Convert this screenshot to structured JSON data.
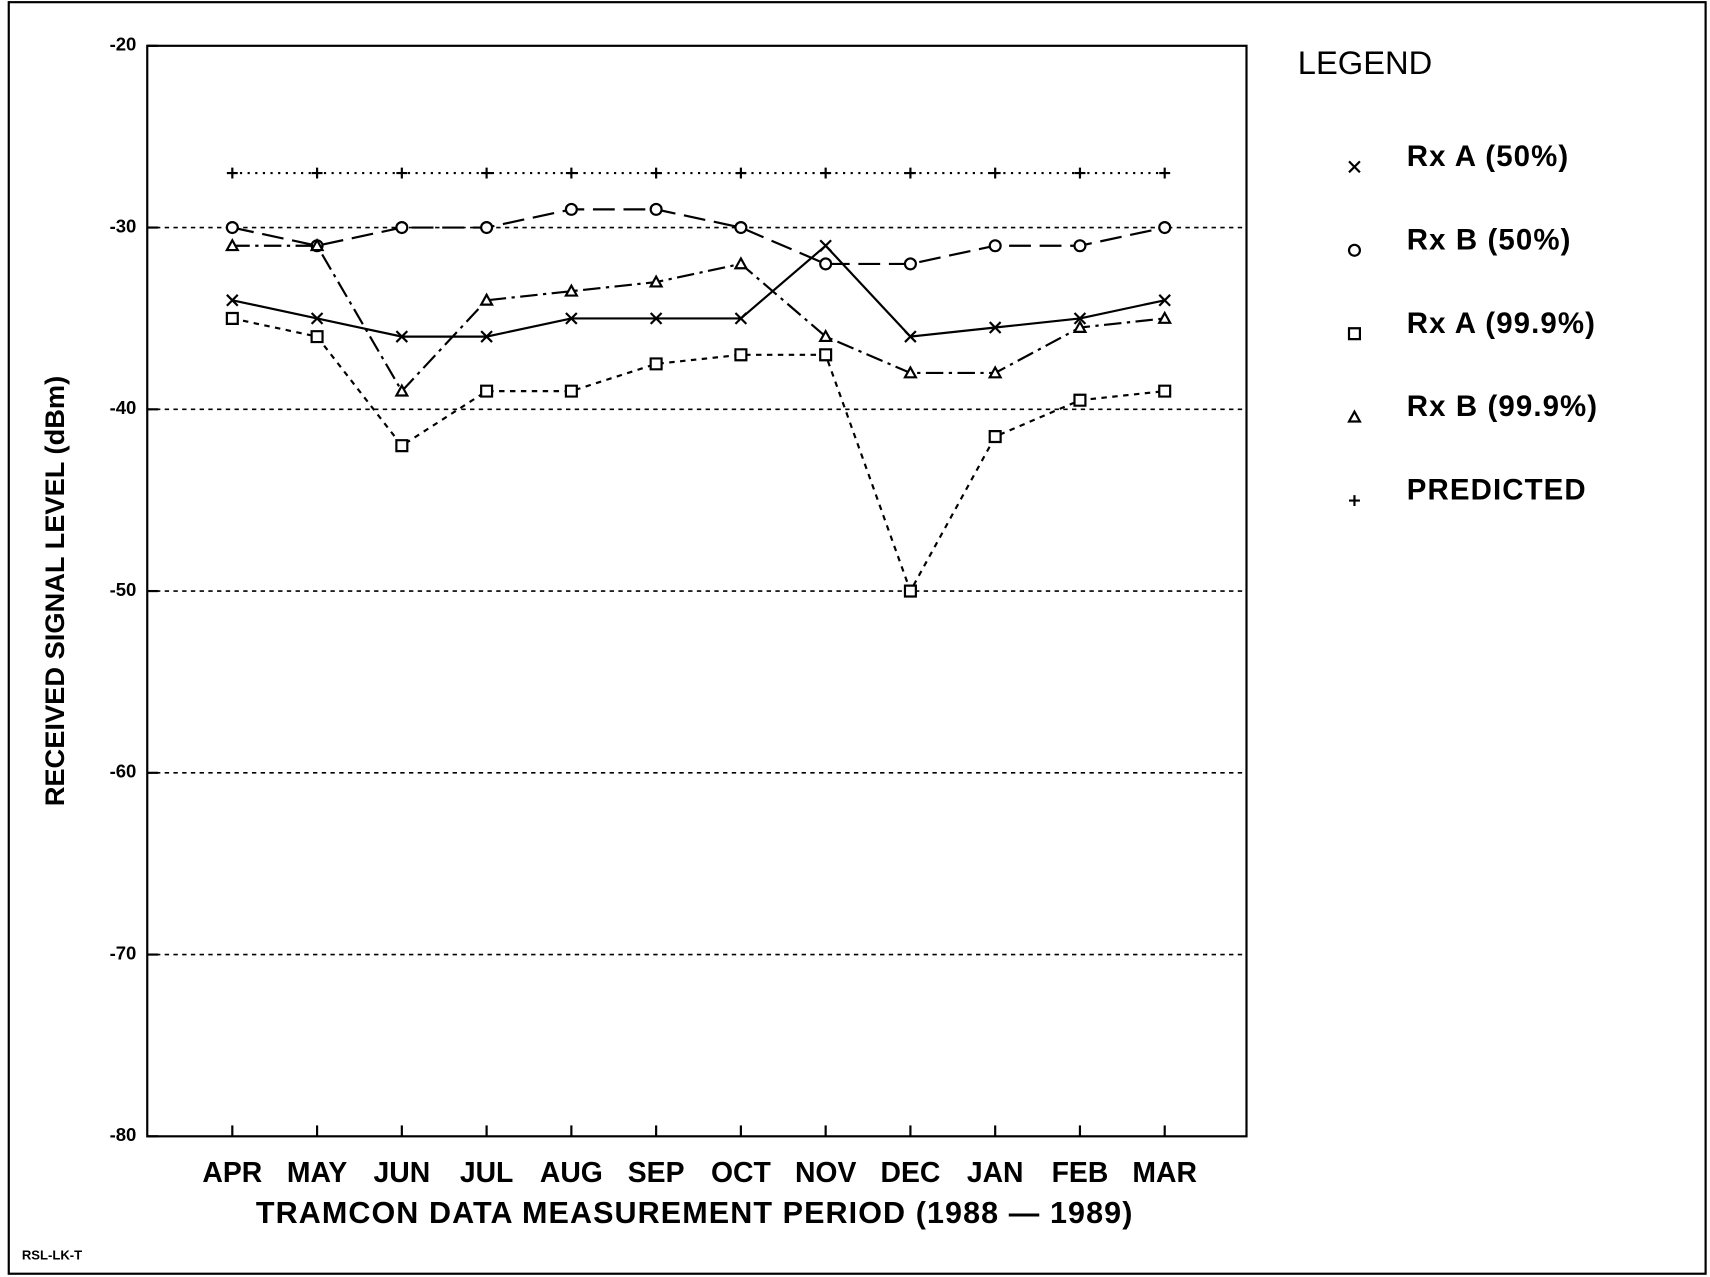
{
  "chart_data": {
    "type": "line",
    "ylabel": "RECEIVED SIGNAL LEVEL (dBm)",
    "xlabel": "TRAMCON DATA MEASUREMENT PERIOD (1988 — 1989)",
    "legend_title": "LEGEND",
    "footnote": "RSL-LK-T",
    "categories": [
      "APR",
      "MAY",
      "JUN",
      "JUL",
      "AUG",
      "SEP",
      "OCT",
      "NOV",
      "DEC",
      "JAN",
      "FEB",
      "MAR"
    ],
    "series": [
      {
        "name": "Rx A (50%)",
        "color": "#000000",
        "marker": "x",
        "dash": "solid",
        "values": [
          -34,
          -35,
          -36,
          -36,
          -35,
          -35,
          -35,
          -31,
          -36,
          -35.5,
          -35,
          -34
        ]
      },
      {
        "name": "Rx B (50%)",
        "color": "#000000",
        "marker": "circle",
        "dash": "long",
        "values": [
          -30,
          -31,
          -30,
          -30,
          -29,
          -29,
          -30,
          -32,
          -32,
          -31,
          -31,
          -30
        ]
      },
      {
        "name": "Rx A (99.9%)",
        "color": "#000000",
        "marker": "square",
        "dash": "short",
        "values": [
          -35,
          -36,
          -42,
          -39,
          -39,
          -37.5,
          -37,
          -37,
          -50,
          -41.5,
          -39.5,
          -39
        ]
      },
      {
        "name": "Rx B (99.9%)",
        "color": "#000000",
        "marker": "triangle",
        "dash": "dashdot",
        "values": [
          -31,
          -31,
          -39,
          -34,
          -33.5,
          -33,
          -32,
          -36,
          -38,
          -38,
          -35.5,
          -35
        ]
      },
      {
        "name": "PREDICTED",
        "color": "#000000",
        "marker": "plus",
        "dash": "dotted",
        "values": [
          -27,
          -27,
          -27,
          -27,
          -27,
          -27,
          -27,
          -27,
          -27,
          -27,
          -27,
          -27
        ]
      }
    ],
    "ylim": [
      -80,
      -20
    ],
    "yticks": [
      -20,
      -30,
      -40,
      -50,
      -60,
      -70,
      -80
    ],
    "grid": true,
    "legend_position": "right"
  }
}
